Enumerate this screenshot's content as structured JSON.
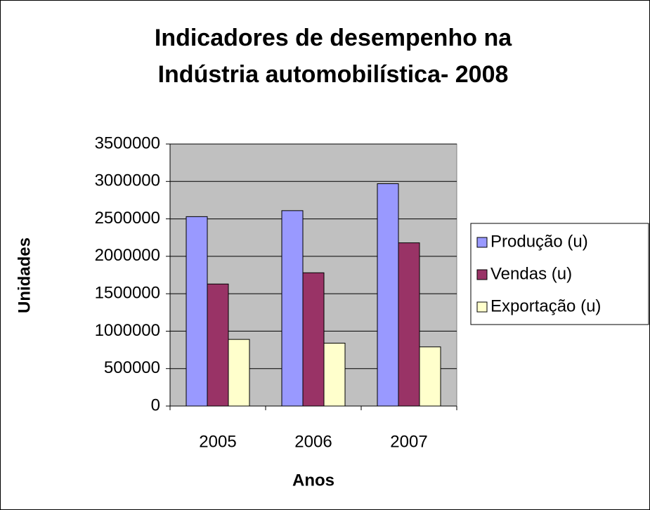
{
  "chart_data": {
    "type": "bar",
    "title": [
      "Indicadores de desempenho na",
      "Indústria automobilística- 2008"
    ],
    "x_label": "Anos",
    "y_label": "Unidades",
    "categories": [
      "2005",
      "2006",
      "2007"
    ],
    "series": [
      {
        "name": "Produção (u)",
        "color": "#9999ff",
        "values": [
          2530000,
          2610000,
          2970000
        ]
      },
      {
        "name": "Vendas (u)",
        "color": "#993366",
        "values": [
          1630000,
          1780000,
          2180000
        ]
      },
      {
        "name": "Exportação (u)",
        "color": "#ffffcc",
        "values": [
          890000,
          840000,
          790000
        ]
      }
    ],
    "ylim": [
      0,
      3500000
    ],
    "yticks": [
      0,
      500000,
      1000000,
      1500000,
      2000000,
      2500000,
      3000000,
      3500000
    ],
    "grid": true,
    "legend": "right",
    "plot_background": "#c0c0c0"
  }
}
